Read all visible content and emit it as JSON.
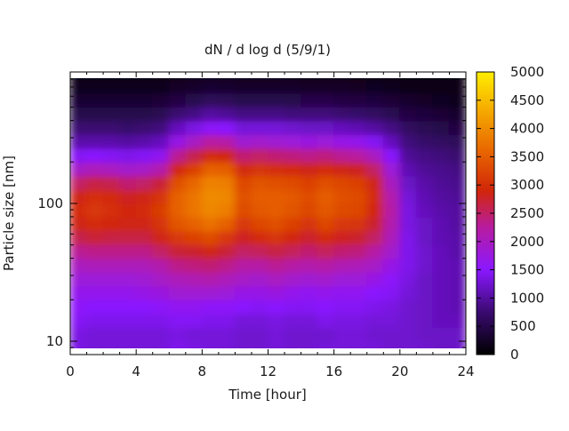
{
  "chart_data": {
    "type": "heatmap",
    "title": "dN / d log d (5/9/1)",
    "xlabel": "Time [hour]",
    "ylabel": "Particle size [nm]",
    "xlim": [
      0,
      24
    ],
    "ylim": [
      8.0,
      900
    ],
    "y_scale": "log",
    "x_ticks": [
      0,
      4,
      8,
      12,
      16,
      20,
      24
    ],
    "x_tick_labels": [
      "0",
      "4",
      "8",
      "12",
      "16",
      "20",
      "24"
    ],
    "y_ticks": [
      10,
      100
    ],
    "y_tick_labels": [
      "10",
      "100"
    ],
    "colorbar": {
      "min": 0,
      "max": 5000,
      "ticks": [
        0,
        500,
        1000,
        1500,
        2000,
        2500,
        3000,
        3500,
        4000,
        4500,
        5000
      ],
      "tick_labels": [
        "0",
        "500",
        "1000",
        "1500",
        "2000",
        "2500",
        "3000",
        "3500",
        "4000",
        "4500",
        "5000"
      ],
      "colormap": "black-purple-red-orange-yellow (gnuplot)"
    },
    "rows": {
      "log10_d_center": [
        0.95,
        1.05,
        1.15,
        1.25,
        1.35,
        1.45,
        1.55,
        1.65,
        1.75,
        1.85,
        1.95,
        2.05,
        2.15,
        2.25,
        2.35,
        2.45,
        2.55,
        2.65,
        2.75,
        2.85,
        2.95
      ]
    },
    "columns": {
      "hour_start": [
        0,
        1,
        2,
        3,
        4,
        5,
        6,
        7,
        8,
        9,
        10,
        11,
        12,
        13,
        14,
        15,
        16,
        17,
        18,
        19,
        20,
        21,
        22,
        23
      ]
    },
    "values": [
      [
        1350,
        1300,
        1300,
        1300,
        1300,
        1300,
        1400,
        1350,
        1300,
        1300,
        1250,
        1250,
        1300,
        1250,
        1250,
        1300,
        1300,
        1300,
        1300,
        1250,
        1250,
        1250,
        1200,
        1200
      ],
      [
        1350,
        1300,
        1300,
        1300,
        1300,
        1300,
        1350,
        1300,
        1300,
        1300,
        1250,
        1250,
        1300,
        1250,
        1250,
        1250,
        1300,
        1300,
        1250,
        1250,
        1250,
        1200,
        1200,
        1200
      ],
      [
        1450,
        1400,
        1400,
        1400,
        1400,
        1400,
        1450,
        1450,
        1400,
        1400,
        1300,
        1300,
        1350,
        1300,
        1300,
        1400,
        1350,
        1350,
        1300,
        1300,
        1250,
        1200,
        1150,
        1150
      ],
      [
        1550,
        1500,
        1500,
        1500,
        1500,
        1550,
        1600,
        1600,
        1550,
        1550,
        1500,
        1450,
        1500,
        1450,
        1450,
        1500,
        1450,
        1450,
        1400,
        1350,
        1250,
        1200,
        1150,
        1100
      ],
      [
        1650,
        1650,
        1650,
        1650,
        1700,
        1750,
        1850,
        1850,
        1850,
        1800,
        1700,
        1700,
        1750,
        1650,
        1600,
        1650,
        1600,
        1600,
        1500,
        1450,
        1300,
        1200,
        1150,
        1100
      ],
      [
        1800,
        1800,
        1800,
        1800,
        1850,
        1950,
        2050,
        2100,
        2150,
        2050,
        1950,
        1900,
        2000,
        1900,
        1850,
        1900,
        1800,
        1800,
        1700,
        1550,
        1350,
        1200,
        1150,
        1100
      ],
      [
        2000,
        2050,
        2050,
        2050,
        2050,
        2150,
        2350,
        2400,
        2450,
        2350,
        2200,
        2200,
        2300,
        2200,
        2150,
        2200,
        2100,
        2050,
        1950,
        1700,
        1400,
        1250,
        1150,
        1100
      ],
      [
        2300,
        2350,
        2350,
        2350,
        2350,
        2500,
        2700,
        2750,
        2850,
        2700,
        2500,
        2550,
        2650,
        2550,
        2450,
        2550,
        2450,
        2400,
        2200,
        1900,
        1400,
        1250,
        1150,
        1050
      ],
      [
        2600,
        2700,
        2650,
        2650,
        2650,
        2850,
        3100,
        3200,
        3300,
        3100,
        2800,
        2950,
        3050,
        2900,
        2750,
        2950,
        2800,
        2750,
        2500,
        2050,
        1400,
        1200,
        1100,
        1050
      ],
      [
        2850,
        2950,
        2900,
        2850,
        2850,
        3050,
        3400,
        3550,
        3700,
        3550,
        3100,
        3250,
        3350,
        3200,
        3050,
        3250,
        3100,
        3050,
        2750,
        2150,
        1350,
        1200,
        1100,
        1000
      ],
      [
        2950,
        3100,
        3000,
        2900,
        2950,
        3150,
        3550,
        3750,
        3950,
        3850,
        3300,
        3450,
        3500,
        3400,
        3250,
        3450,
        3300,
        3250,
        2900,
        2200,
        1350,
        1150,
        1050,
        1000
      ],
      [
        2850,
        3000,
        2950,
        2800,
        2850,
        3050,
        3550,
        3750,
        4000,
        3950,
        3350,
        3500,
        3500,
        3450,
        3300,
        3500,
        3350,
        3300,
        2950,
        2150,
        1300,
        1100,
        1000,
        950
      ],
      [
        2500,
        2650,
        2600,
        2450,
        2500,
        2700,
        3350,
        3600,
        3900,
        3850,
        3250,
        3400,
        3350,
        3300,
        3200,
        3350,
        3250,
        3200,
        2850,
        2000,
        1200,
        1050,
        950,
        900
      ],
      [
        1950,
        2050,
        2000,
        1900,
        1950,
        2150,
        2900,
        3200,
        3550,
        3500,
        2950,
        3050,
        3000,
        2950,
        2850,
        2950,
        2850,
        2800,
        2500,
        1800,
        1100,
        950,
        900,
        850
      ],
      [
        1450,
        1500,
        1450,
        1400,
        1450,
        1600,
        2300,
        2600,
        2950,
        2900,
        2450,
        2500,
        2450,
        2400,
        2350,
        2400,
        2300,
        2250,
        2000,
        1500,
        950,
        850,
        800,
        750
      ],
      [
        1050,
        1050,
        1050,
        1000,
        1050,
        1150,
        1700,
        1950,
        2250,
        2200,
        1850,
        1900,
        1850,
        1800,
        1750,
        1800,
        1700,
        1650,
        1450,
        1150,
        800,
        700,
        650,
        600
      ],
      [
        750,
        750,
        750,
        700,
        750,
        800,
        1150,
        1350,
        1550,
        1500,
        1300,
        1300,
        1300,
        1250,
        1200,
        1200,
        1150,
        1100,
        1000,
        850,
        650,
        550,
        500,
        450
      ],
      [
        500,
        500,
        500,
        500,
        500,
        550,
        750,
        850,
        1000,
        950,
        850,
        850,
        850,
        800,
        800,
        800,
        750,
        700,
        650,
        550,
        450,
        400,
        350,
        300
      ],
      [
        320,
        320,
        320,
        320,
        320,
        350,
        450,
        520,
        600,
        580,
        520,
        520,
        520,
        500,
        480,
        480,
        450,
        420,
        400,
        350,
        300,
        250,
        220,
        200
      ],
      [
        180,
        180,
        180,
        180,
        180,
        200,
        250,
        290,
        320,
        310,
        290,
        290,
        290,
        280,
        270,
        270,
        250,
        240,
        220,
        200,
        170,
        150,
        130,
        120
      ],
      [
        80,
        80,
        80,
        80,
        80,
        90,
        110,
        120,
        130,
        130,
        120,
        120,
        120,
        115,
        110,
        110,
        105,
        100,
        95,
        85,
        75,
        65,
        60,
        55
      ]
    ]
  }
}
